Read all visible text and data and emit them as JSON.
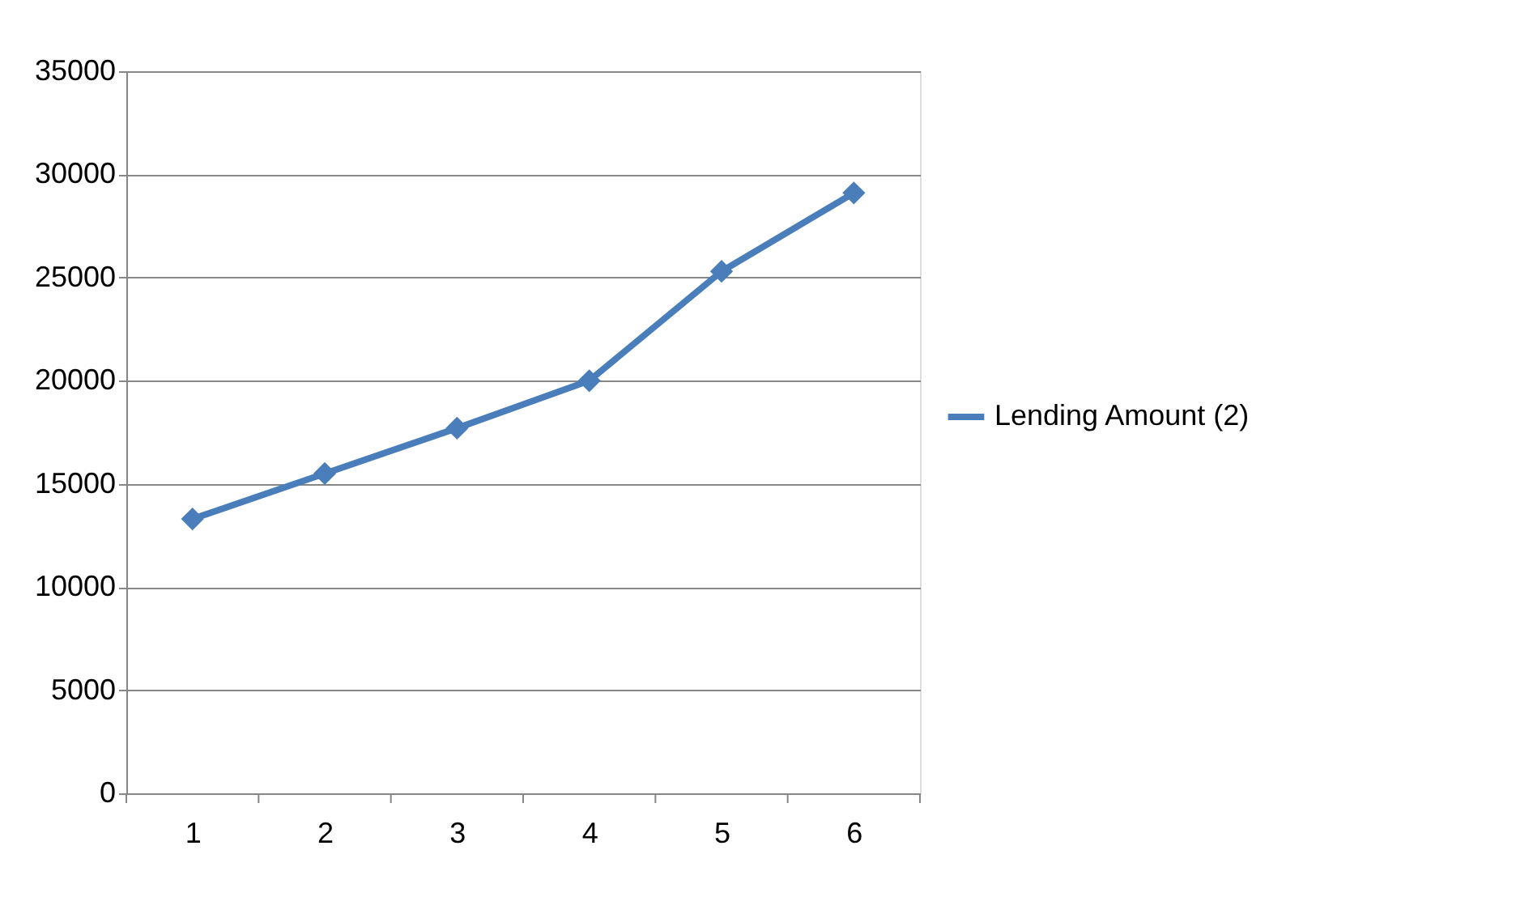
{
  "chart_data": {
    "type": "line",
    "categories": [
      "1",
      "2",
      "3",
      "4",
      "5",
      "6"
    ],
    "series": [
      {
        "name": "Lending Amount (2)",
        "color": "#4a7ebb",
        "values": [
          13300,
          15500,
          17700,
          20000,
          25300,
          29100
        ]
      }
    ],
    "ylim": [
      0,
      35000
    ],
    "yticks": [
      0,
      5000,
      10000,
      15000,
      20000,
      25000,
      30000,
      35000
    ],
    "grid": "y",
    "legend": "right",
    "marker": "diamond",
    "line_style": "solid"
  }
}
